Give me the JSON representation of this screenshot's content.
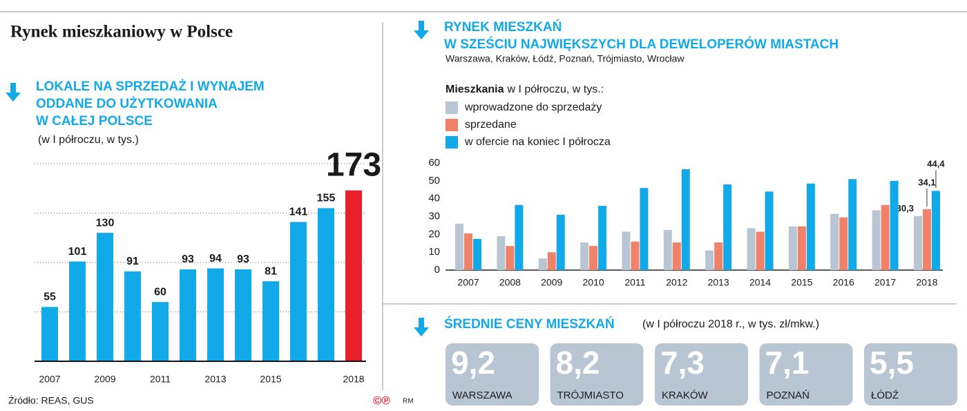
{
  "title": "Rynek mieszkaniowy w Polsce",
  "chart_data": [
    {
      "type": "bar",
      "title": [
        "LOKALE NA SPRZEDAŻ I WYNAJEM",
        "ODDANE DO UŻYTKOWANIA",
        "W CAŁEJ POLSCE"
      ],
      "subtitle": "(w I półroczu, w tys.)",
      "categories": [
        "2007",
        null,
        "2009",
        null,
        "2011",
        null,
        "2013",
        null,
        "2015",
        null,
        null,
        "2018"
      ],
      "values": [
        55,
        101,
        130,
        91,
        60,
        93,
        94,
        93,
        81,
        141,
        155,
        173
      ],
      "colors": [
        "#12a9e8",
        "#12a9e8",
        "#12a9e8",
        "#12a9e8",
        "#12a9e8",
        "#12a9e8",
        "#12a9e8",
        "#12a9e8",
        "#12a9e8",
        "#12a9e8",
        "#12a9e8",
        "#e8202a"
      ],
      "ylim": [
        0,
        200
      ],
      "yticks": [
        0,
        50,
        100,
        150,
        200
      ],
      "grid": true
    },
    {
      "type": "grouped-bar",
      "title": [
        "RYNEK MIESZKAŃ",
        "W SZEŚCIU NAJWIĘKSZYCH DLA DEWELOPERÓW MIASTACH"
      ],
      "subtitle": "Warszawa, Kraków, Łódź, Poznań, Trójmiasto, Wrocław",
      "legend_title_bold": "Mieszkania",
      "legend_title": "w I półroczu, w tys.:",
      "categories": [
        "2007",
        "2008",
        "2009",
        "2010",
        "2011",
        "2012",
        "2013",
        "2014",
        "2015",
        "2016",
        "2017",
        "2018"
      ],
      "series": [
        {
          "name": "wprowadzone do sprzedaży",
          "color": "#b8c5d2",
          "values": [
            26,
            19,
            6.5,
            15.5,
            21.5,
            22.5,
            11,
            23.5,
            24.5,
            31.5,
            33.5,
            30.3
          ],
          "value_labels": [
            null,
            null,
            null,
            null,
            null,
            null,
            null,
            null,
            null,
            null,
            null,
            "30,3"
          ]
        },
        {
          "name": "sprzedane",
          "color": "#f0826a",
          "values": [
            20.5,
            13.5,
            10,
            13.5,
            16,
            15.5,
            15.5,
            21.5,
            24.5,
            29.5,
            36.5,
            34.1
          ],
          "value_labels": [
            null,
            null,
            null,
            null,
            null,
            null,
            null,
            null,
            null,
            null,
            null,
            "34,1"
          ]
        },
        {
          "name": "w ofercie na koniec I półrocza",
          "color": "#12a9e8",
          "values": [
            17.5,
            36.5,
            31,
            36,
            46,
            56.5,
            48,
            44,
            48.5,
            51,
            50,
            44.4
          ],
          "value_labels": [
            null,
            null,
            null,
            null,
            null,
            null,
            null,
            null,
            null,
            null,
            null,
            "44,4"
          ]
        }
      ],
      "ylim": [
        0,
        60
      ],
      "yticks": [
        0,
        10,
        20,
        30,
        40,
        50,
        60
      ],
      "grid": false
    }
  ],
  "prices": {
    "title": "ŚREDNIE CENY MIESZKAŃ",
    "note": "(w I półroczu 2018 r., w tys. zł/mkw.)",
    "items": [
      {
        "value": "9,2",
        "city": "WARSZAWA"
      },
      {
        "value": "8,2",
        "city": "TRÓJMIASTO"
      },
      {
        "value": "7,3",
        "city": "KRAKÓW"
      },
      {
        "value": "7,1",
        "city": "POZNAŃ"
      },
      {
        "value": "5,5",
        "city": "ŁÓDŹ"
      }
    ]
  },
  "source": "Źródło: REAS, GUS",
  "copyright": "©℗",
  "copyright_initials": "RM"
}
